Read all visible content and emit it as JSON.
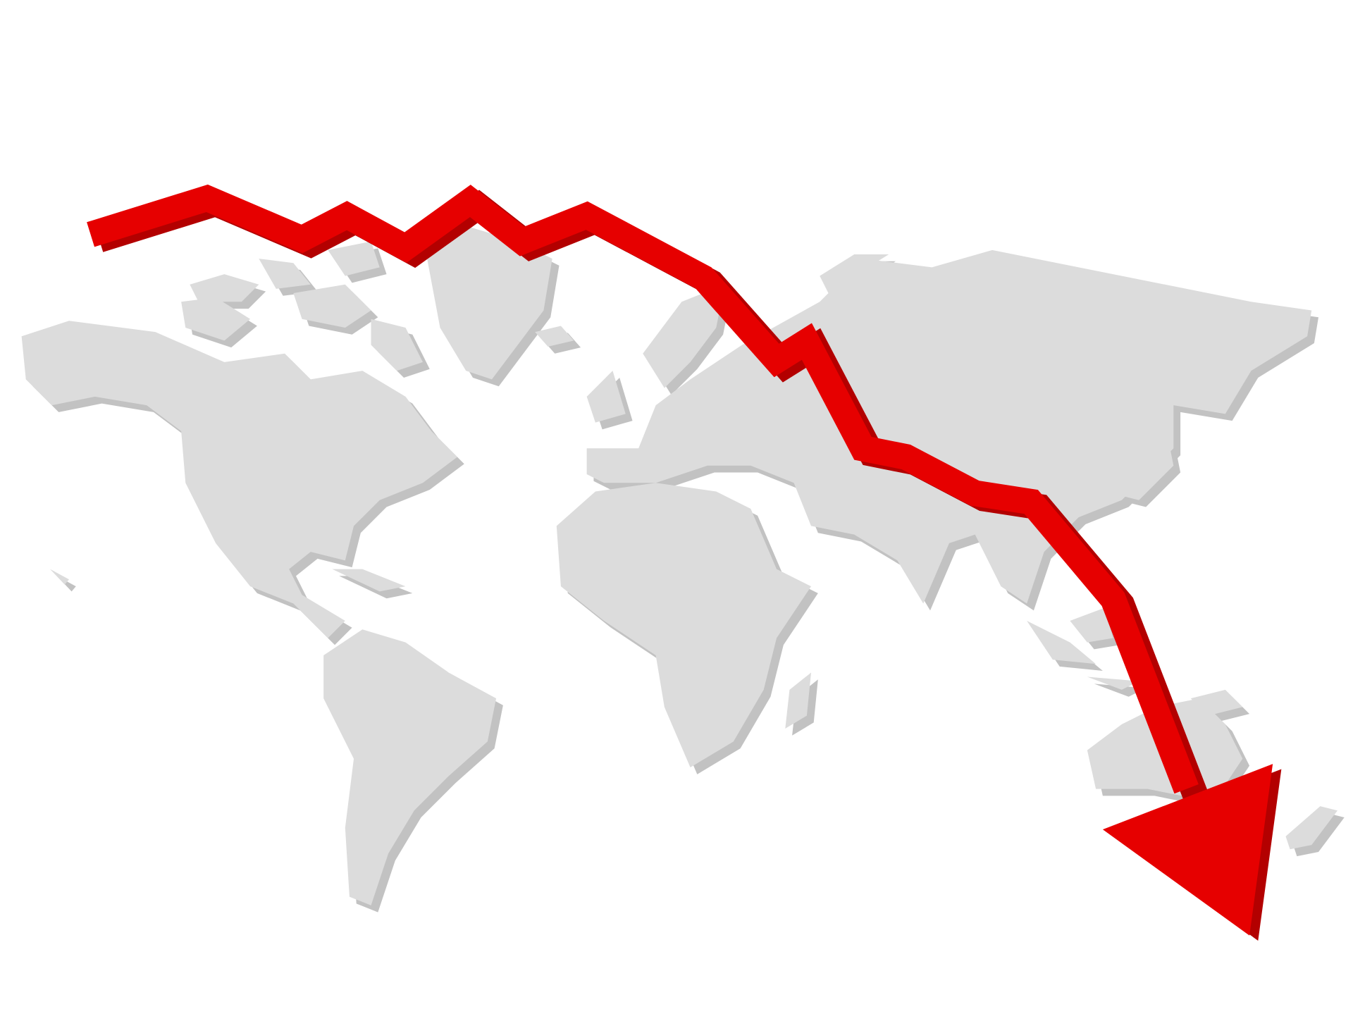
{
  "illustration": {
    "subject": "world-map-with-declining-arrow",
    "colors": {
      "background": "#ffffff",
      "land": "#dcdcdc",
      "land_shadow": "#c2c2c2",
      "arrow": "#e60000",
      "arrow_shadow": "#b30000"
    },
    "trend": "downward"
  }
}
